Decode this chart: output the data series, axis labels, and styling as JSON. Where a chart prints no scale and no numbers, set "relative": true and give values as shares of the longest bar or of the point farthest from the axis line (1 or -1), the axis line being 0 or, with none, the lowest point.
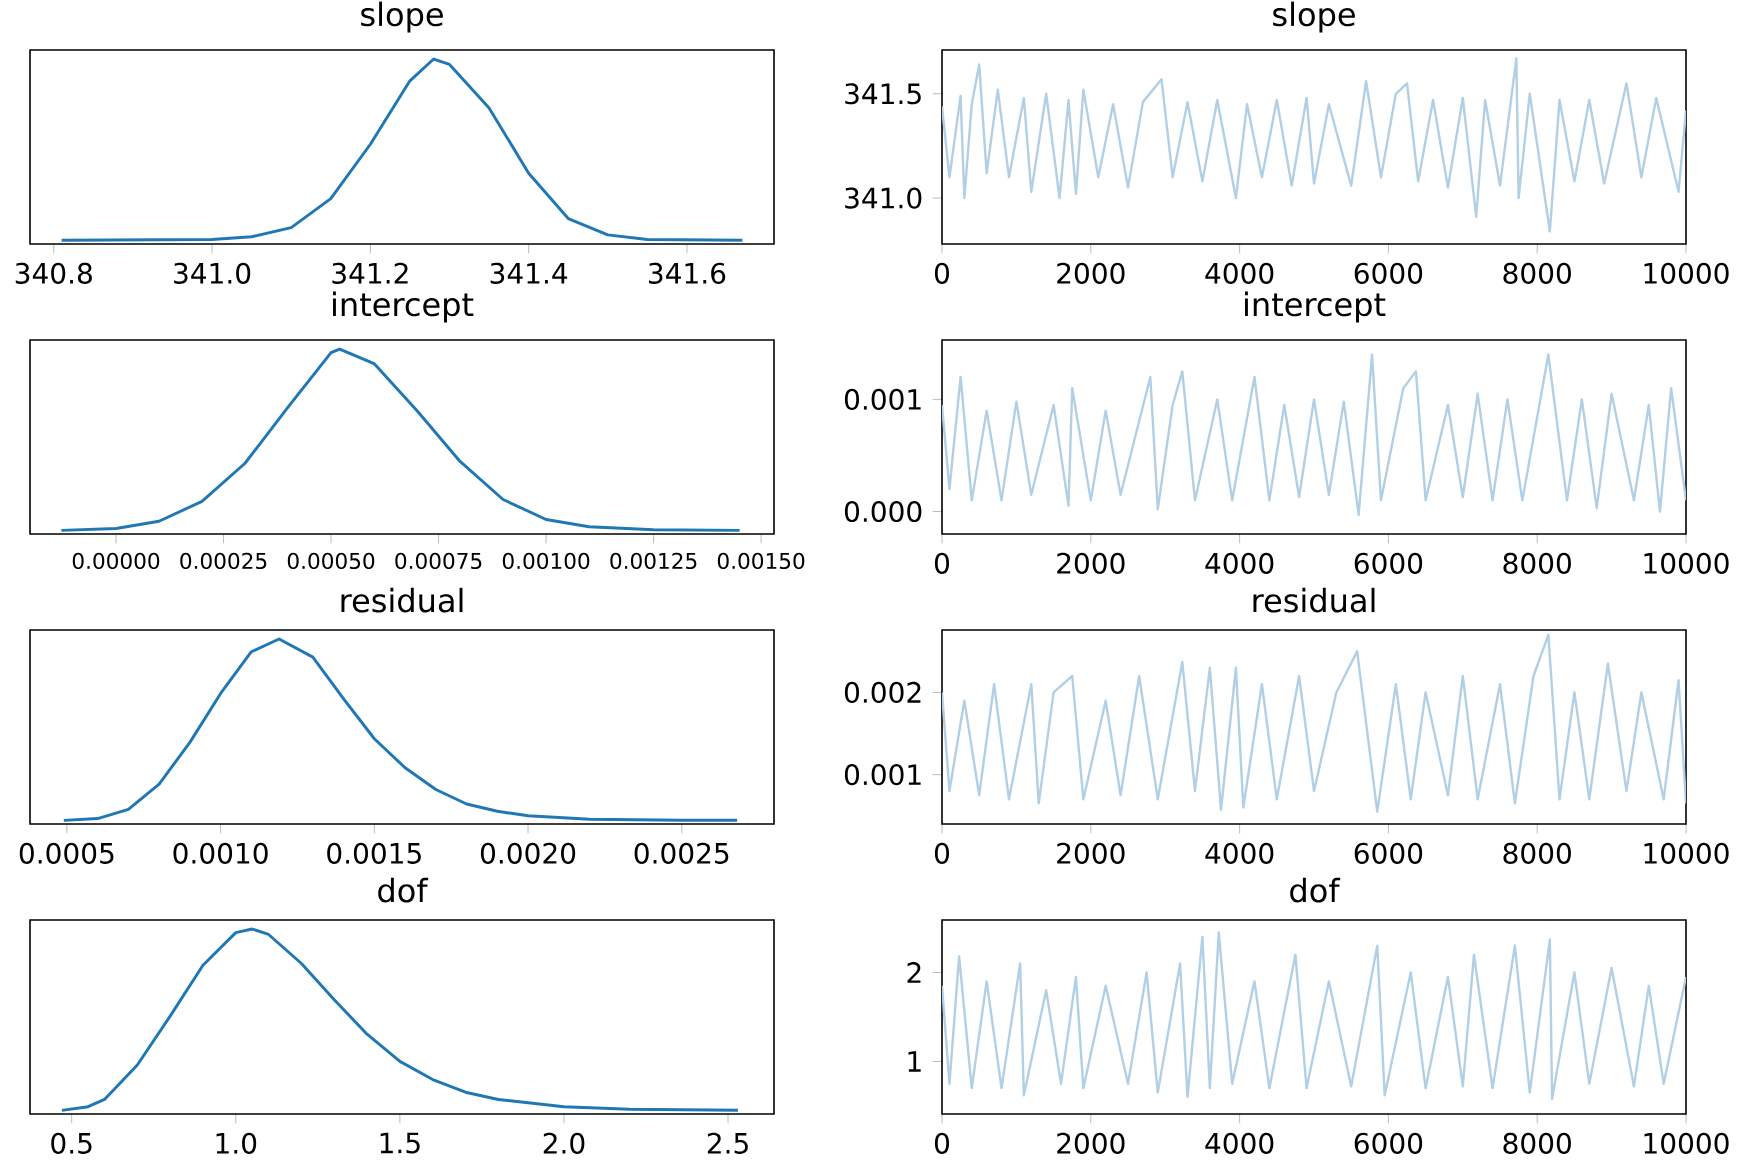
{
  "chart_data": [
    {
      "type": "line",
      "title": "slope",
      "relative": true,
      "tick_labels": "x",
      "xlim": [
        340.77,
        341.71
      ],
      "xticks": [
        340.8,
        {
          "value": 341.0,
          "label": "341.0"
        },
        341.2,
        341.4,
        341.6
      ],
      "x": [
        340.81,
        341.0,
        341.05,
        341.1,
        341.15,
        341.2,
        341.25,
        341.28,
        341.3,
        341.35,
        341.4,
        341.45,
        341.5,
        341.55,
        341.67
      ],
      "series": [
        {
          "color": "#1f77b4",
          "values": [
            0,
            0.005,
            0.02,
            0.07,
            0.23,
            0.53,
            0.88,
            1,
            0.97,
            0.73,
            0.37,
            0.12,
            0.03,
            0.005,
            0
          ]
        }
      ]
    },
    {
      "type": "line",
      "title": "slope",
      "xlim": [
        0,
        10000
      ],
      "xticks": [
        0,
        2000,
        4000,
        6000,
        8000,
        10000
      ],
      "ylim": [
        340.78,
        341.71
      ],
      "yticks": [
        {
          "value": 341.0,
          "label": "341.0"
        },
        341.5
      ],
      "x": [
        0,
        100,
        250,
        300,
        400,
        500,
        600,
        750,
        900,
        1100,
        1200,
        1400,
        1580,
        1700,
        1800,
        1900,
        2100,
        2300,
        2500,
        2700,
        2950,
        3100,
        3300,
        3500,
        3700,
        3950,
        4100,
        4300,
        4500,
        4700,
        4900,
        5000,
        5200,
        5500,
        5700,
        5900,
        6100,
        6250,
        6400,
        6600,
        6800,
        7000,
        7180,
        7300,
        7500,
        7720,
        7750,
        7900,
        8170,
        8300,
        8500,
        8700,
        8900,
        9200,
        9400,
        9600,
        9900,
        10000
      ],
      "series": [
        {
          "color": "#b1cfe5",
          "values": [
            341.44,
            341.1,
            341.49,
            341.0,
            341.45,
            341.64,
            341.12,
            341.52,
            341.1,
            341.48,
            341.03,
            341.5,
            341.0,
            341.47,
            341.02,
            341.52,
            341.1,
            341.45,
            341.05,
            341.46,
            341.57,
            341.1,
            341.46,
            341.08,
            341.47,
            341.0,
            341.45,
            341.1,
            341.47,
            341.06,
            341.48,
            341.07,
            341.45,
            341.06,
            341.56,
            341.1,
            341.5,
            341.55,
            341.08,
            341.47,
            341.05,
            341.48,
            340.91,
            341.47,
            341.06,
            341.67,
            341.0,
            341.5,
            340.84,
            341.47,
            341.08,
            341.47,
            341.07,
            341.55,
            341.1,
            341.48,
            341.03,
            341.42
          ]
        }
      ]
    },
    {
      "type": "line",
      "title": "intercept",
      "relative": true,
      "tick_labels": "x",
      "xlim": [
        -0.0002,
        0.00153
      ],
      "xticks": [
        {
          "value": 0,
          "label": "0.00000"
        },
        0.00025,
        {
          "value": 0.0005,
          "label": "0.00050"
        },
        0.00075,
        {
          "value": 0.001,
          "label": "0.00100"
        },
        0.00125,
        {
          "value": 0.0015,
          "label": "0.00150"
        }
      ],
      "x": [
        -0.000127,
        0.0,
        0.0001,
        0.0002,
        0.0003,
        0.0004,
        0.0005,
        0.00052,
        0.0006,
        0.0007,
        0.0008,
        0.0009,
        0.001,
        0.0011,
        0.00125,
        0.00145
      ],
      "series": [
        {
          "color": "#1f77b4",
          "values": [
            0,
            0.01,
            0.05,
            0.16,
            0.37,
            0.68,
            0.98,
            1,
            0.92,
            0.66,
            0.38,
            0.17,
            0.06,
            0.02,
            0.003,
            0
          ]
        }
      ]
    },
    {
      "type": "line",
      "title": "intercept",
      "xlim": [
        0,
        10000
      ],
      "xticks": [
        0,
        2000,
        4000,
        6000,
        8000,
        10000
      ],
      "ylim": [
        -0.0002,
        0.00153
      ],
      "yticks": [
        {
          "value": 0,
          "label": "0.000"
        },
        0.001
      ],
      "x": [
        0,
        100,
        250,
        400,
        600,
        800,
        1000,
        1200,
        1500,
        1700,
        1750,
        2000,
        2200,
        2400,
        2800,
        2900,
        3100,
        3230,
        3400,
        3700,
        3900,
        4200,
        4400,
        4600,
        4800,
        5000,
        5200,
        5400,
        5600,
        5780,
        5900,
        6200,
        6370,
        6500,
        6800,
        7000,
        7200,
        7400,
        7600,
        7800,
        8150,
        8400,
        8600,
        8800,
        9000,
        9300,
        9500,
        9650,
        9800,
        10000
      ],
      "series": [
        {
          "color": "#b1cfe5",
          "values": [
            0.00095,
            0.0002,
            0.0012,
            0.0001,
            0.0009,
            0.0001,
            0.00098,
            0.00015,
            0.00095,
            5e-05,
            0.0011,
            0.0001,
            0.0009,
            0.00015,
            0.0012,
            2e-05,
            0.00095,
            0.00125,
            0.0001,
            0.001,
            0.0001,
            0.0012,
            0.0001,
            0.00095,
            0.00013,
            0.001,
            0.00015,
            0.00098,
            -3e-05,
            0.0014,
            0.0001,
            0.0011,
            0.00125,
            0.0001,
            0.00095,
            0.00013,
            0.00105,
            0.0001,
            0.001,
            0.0001,
            0.0014,
            0.0001,
            0.001,
            3e-05,
            0.00105,
            0.0001,
            0.00095,
            0.0,
            0.0011,
            0.0001
          ]
        }
      ]
    },
    {
      "type": "line",
      "title": "residual",
      "relative": true,
      "tick_labels": "x",
      "xlim": [
        0.00038,
        0.0028
      ],
      "xticks": [
        0.0005,
        {
          "value": 0.001,
          "label": "0.0010"
        },
        0.0015,
        {
          "value": 0.002,
          "label": "0.0020"
        },
        0.0025
      ],
      "x": [
        0.00049,
        0.0006,
        0.0007,
        0.0008,
        0.0009,
        0.001,
        0.0011,
        0.00119,
        0.0013,
        0.0014,
        0.0015,
        0.0016,
        0.0017,
        0.0018,
        0.0019,
        0.002,
        0.0022,
        0.0025,
        0.00268
      ],
      "series": [
        {
          "color": "#1f77b4",
          "values": [
            0,
            0.01,
            0.06,
            0.2,
            0.43,
            0.7,
            0.93,
            1,
            0.9,
            0.67,
            0.45,
            0.29,
            0.17,
            0.09,
            0.05,
            0.025,
            0.006,
            0.001,
            0
          ]
        }
      ]
    },
    {
      "type": "line",
      "title": "residual",
      "xlim": [
        0,
        10000
      ],
      "xticks": [
        0,
        2000,
        4000,
        6000,
        8000,
        10000
      ],
      "ylim": [
        0.0004,
        0.00276
      ],
      "yticks": [
        0.001,
        0.002
      ],
      "x": [
        0,
        100,
        300,
        500,
        700,
        900,
        1200,
        1300,
        1500,
        1750,
        1900,
        2200,
        2400,
        2650,
        2900,
        3230,
        3400,
        3600,
        3750,
        3950,
        4050,
        4300,
        4500,
        4800,
        5000,
        5300,
        5580,
        5850,
        6100,
        6300,
        6500,
        6800,
        7000,
        7200,
        7500,
        7700,
        7950,
        8150,
        8300,
        8500,
        8700,
        8950,
        9200,
        9400,
        9700,
        9900,
        10000
      ],
      "series": [
        {
          "color": "#b1cfe5",
          "values": [
            0.002,
            0.0008,
            0.0019,
            0.00075,
            0.0021,
            0.0007,
            0.0021,
            0.00065,
            0.002,
            0.0022,
            0.0007,
            0.0019,
            0.00075,
            0.0022,
            0.0007,
            0.00237,
            0.0008,
            0.0023,
            0.00057,
            0.0023,
            0.0006,
            0.0021,
            0.0007,
            0.0022,
            0.0008,
            0.002,
            0.0025,
            0.00055,
            0.0021,
            0.0007,
            0.002,
            0.00075,
            0.0022,
            0.0007,
            0.0021,
            0.00065,
            0.0022,
            0.0027,
            0.0007,
            0.002,
            0.0007,
            0.00235,
            0.0008,
            0.002,
            0.0007,
            0.00215,
            0.00065
          ]
        }
      ]
    },
    {
      "type": "line",
      "title": "dof",
      "relative": true,
      "tick_labels": "x",
      "xlim": [
        0.373,
        2.64
      ],
      "xticks": [
        0.5,
        {
          "value": 1.0,
          "label": "1.0"
        },
        1.5,
        {
          "value": 2.0,
          "label": "2.0"
        },
        2.5
      ],
      "x": [
        0.47,
        0.55,
        0.6,
        0.7,
        0.8,
        0.9,
        1.0,
        1.05,
        1.1,
        1.2,
        1.3,
        1.4,
        1.5,
        1.6,
        1.7,
        1.8,
        2.0,
        2.2,
        2.53
      ],
      "series": [
        {
          "color": "#1f77b4",
          "values": [
            0,
            0.02,
            0.06,
            0.25,
            0.52,
            0.8,
            0.98,
            1,
            0.97,
            0.81,
            0.61,
            0.42,
            0.27,
            0.17,
            0.1,
            0.06,
            0.02,
            0.006,
            0
          ]
        }
      ]
    },
    {
      "type": "line",
      "title": "dof",
      "xlim": [
        0,
        10000
      ],
      "xticks": [
        0,
        2000,
        4000,
        6000,
        8000,
        10000
      ],
      "ylim": [
        0.41,
        2.59
      ],
      "yticks": [
        1,
        2
      ],
      "x": [
        0,
        100,
        230,
        400,
        600,
        800,
        1050,
        1100,
        1400,
        1600,
        1800,
        1900,
        2200,
        2500,
        2750,
        2900,
        3200,
        3300,
        3500,
        3600,
        3720,
        3900,
        4200,
        4400,
        4750,
        4900,
        5200,
        5500,
        5850,
        5950,
        6300,
        6500,
        6800,
        7000,
        7150,
        7400,
        7700,
        7900,
        8170,
        8200,
        8500,
        8700,
        9000,
        9300,
        9500,
        9700,
        10000
      ],
      "series": [
        {
          "color": "#b1cfe5",
          "values": [
            1.85,
            0.75,
            2.18,
            0.7,
            1.9,
            0.7,
            2.1,
            0.62,
            1.8,
            0.75,
            1.95,
            0.7,
            1.85,
            0.75,
            2.0,
            0.65,
            2.1,
            0.6,
            2.4,
            0.7,
            2.45,
            0.75,
            1.9,
            0.7,
            2.2,
            0.7,
            1.9,
            0.72,
            2.3,
            0.62,
            2.0,
            0.7,
            1.95,
            0.72,
            2.2,
            0.7,
            2.3,
            0.65,
            2.37,
            0.58,
            2.0,
            0.75,
            2.05,
            0.72,
            1.85,
            0.75,
            1.95
          ]
        }
      ]
    }
  ]
}
